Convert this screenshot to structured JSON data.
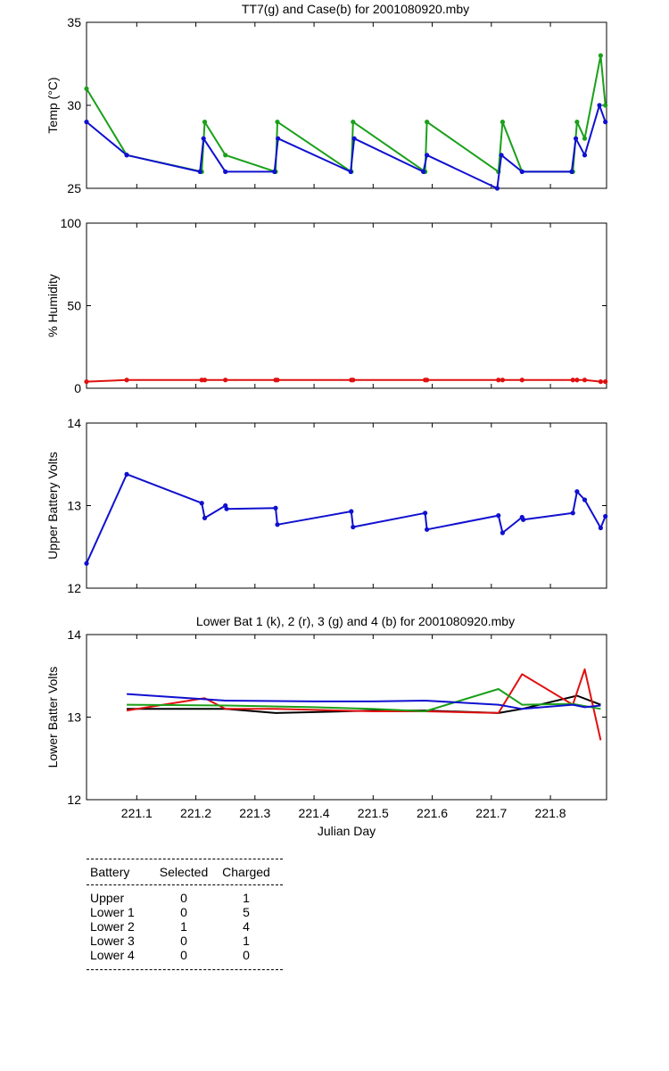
{
  "chart_data": [
    {
      "type": "line",
      "title": "TT7(g) and Case(b) for 2001080920.mby",
      "xlabel": "",
      "ylabel": "Temp  (°C)",
      "xlim": [
        221.015,
        221.895
      ],
      "ylim": [
        25,
        35
      ],
      "yticks": [
        25,
        30,
        35
      ],
      "grid": false,
      "series": [
        {
          "color": "#1aa01a",
          "x": [
            221.015,
            221.083,
            221.21,
            221.215,
            221.25,
            221.335,
            221.338,
            221.463,
            221.466,
            221.588,
            221.591,
            221.712,
            221.719,
            221.752,
            221.838,
            221.845,
            221.858,
            221.885,
            221.893
          ],
          "y": [
            31,
            27,
            26,
            29,
            27,
            26,
            29,
            26,
            29,
            26,
            29,
            26,
            29,
            26,
            26,
            29,
            28,
            33,
            30
          ]
        },
        {
          "color": "#1010d0",
          "x": [
            221.015,
            221.083,
            221.207,
            221.213,
            221.25,
            221.333,
            221.339,
            221.462,
            221.468,
            221.585,
            221.591,
            221.71,
            221.717,
            221.752,
            221.836,
            221.843,
            221.858,
            221.883,
            221.893
          ],
          "y": [
            29,
            27,
            26,
            28,
            26,
            26,
            28,
            26,
            28,
            26,
            27,
            25,
            27,
            26,
            26,
            28,
            27,
            30,
            29
          ]
        }
      ]
    },
    {
      "type": "line",
      "title": "",
      "xlabel": "",
      "ylabel": "% Humidity",
      "xlim": [
        221.015,
        221.895
      ],
      "ylim": [
        0,
        100
      ],
      "yticks": [
        0,
        50,
        100
      ],
      "grid": false,
      "series": [
        {
          "color": "#e01010",
          "x": [
            221.015,
            221.083,
            221.21,
            221.215,
            221.25,
            221.335,
            221.338,
            221.463,
            221.466,
            221.588,
            221.591,
            221.712,
            221.719,
            221.752,
            221.838,
            221.845,
            221.858,
            221.885,
            221.893
          ],
          "y": [
            4,
            5,
            5,
            5,
            5,
            5,
            5,
            5,
            5,
            5,
            5,
            5,
            5,
            5,
            5,
            5,
            5,
            4,
            4
          ]
        }
      ]
    },
    {
      "type": "line",
      "title": "",
      "xlabel": "",
      "ylabel": "Upper Battery Volts",
      "xlim": [
        221.015,
        221.895
      ],
      "ylim": [
        12,
        14
      ],
      "yticks": [
        12,
        13,
        14
      ],
      "grid": false,
      "series": [
        {
          "color": "#1010d0",
          "x": [
            221.015,
            221.083,
            221.21,
            221.215,
            221.25,
            221.252,
            221.335,
            221.338,
            221.463,
            221.466,
            221.588,
            221.591,
            221.712,
            221.719,
            221.752,
            221.754,
            221.838,
            221.845,
            221.858,
            221.885,
            221.893
          ],
          "y": [
            12.3,
            13.38,
            13.03,
            12.85,
            13.0,
            12.96,
            12.97,
            12.77,
            12.93,
            12.74,
            12.91,
            12.71,
            12.88,
            12.67,
            12.86,
            12.83,
            12.91,
            13.17,
            13.07,
            12.73,
            12.87
          ]
        }
      ]
    },
    {
      "type": "line",
      "title": "Lower Bat 1 (k), 2 (r), 3 (g) and 4 (b) for 2001080920.mby",
      "xlabel": "Julian Day",
      "ylabel": "Lower Batter Volts",
      "xlim": [
        221.015,
        221.895
      ],
      "ylim": [
        12,
        14
      ],
      "yticks": [
        12,
        13,
        14
      ],
      "xticks": [
        "221.1",
        "221.2",
        "221.3",
        "221.4",
        "221.5",
        "221.6",
        "221.7",
        "221.8"
      ],
      "grid": false,
      "series": [
        {
          "color": "#000000",
          "x": [
            221.083,
            221.25,
            221.335,
            221.4,
            221.5,
            221.588,
            221.712,
            221.752,
            221.845,
            221.885
          ],
          "y": [
            13.1,
            13.1,
            13.05,
            13.06,
            13.08,
            13.08,
            13.05,
            13.1,
            13.26,
            13.15
          ]
        },
        {
          "color": "#e01010",
          "x": [
            221.083,
            221.215,
            221.25,
            221.335,
            221.5,
            221.588,
            221.712,
            221.752,
            221.838,
            221.858,
            221.885
          ],
          "y": [
            13.08,
            13.23,
            13.1,
            13.1,
            13.07,
            13.07,
            13.05,
            13.52,
            13.15,
            13.58,
            12.72
          ]
        },
        {
          "color": "#1aa01a",
          "x": [
            221.083,
            221.25,
            221.4,
            221.5,
            221.588,
            221.712,
            221.752,
            221.838,
            221.885
          ],
          "y": [
            13.15,
            13.14,
            13.12,
            13.1,
            13.07,
            13.34,
            13.15,
            13.16,
            13.1
          ]
        },
        {
          "color": "#1010d0",
          "x": [
            221.083,
            221.25,
            221.4,
            221.5,
            221.588,
            221.712,
            221.752,
            221.838,
            221.858,
            221.885
          ],
          "y": [
            13.28,
            13.2,
            13.19,
            13.19,
            13.2,
            13.15,
            13.1,
            13.15,
            13.12,
            13.14
          ]
        }
      ]
    }
  ],
  "table": {
    "headers": [
      "Battery",
      "Selected",
      "Charged"
    ],
    "rows": [
      [
        "Upper",
        "0",
        "1"
      ],
      [
        "Lower 1",
        "0",
        "5"
      ],
      [
        "Lower 2",
        "1",
        "4"
      ],
      [
        "Lower 3",
        "0",
        "1"
      ],
      [
        "Lower 4",
        "0",
        "0"
      ]
    ]
  }
}
